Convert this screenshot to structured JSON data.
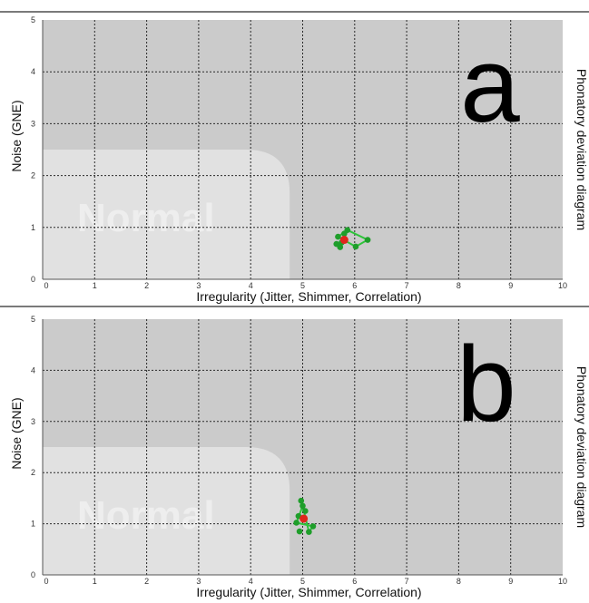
{
  "chart_data": [
    {
      "type": "scatter",
      "panel_letter": "a",
      "xlabel": "Irregularity (Jitter, Shimmer, Correlation)",
      "ylabel": "Noise (GNE)",
      "right_label": "Phonatory deviation diagram",
      "region_label": "Normal",
      "xlim": [
        0,
        10
      ],
      "ylim": [
        0,
        5
      ],
      "x_ticks": [
        "0",
        "1",
        "2",
        "3",
        "4",
        "5",
        "6",
        "7",
        "8",
        "9",
        "10"
      ],
      "y_ticks": [
        "0",
        "1",
        "2",
        "3",
        "4",
        "5"
      ],
      "grid": true,
      "normal_region": {
        "x_max": 4.75,
        "y_max": 2.5
      },
      "colors": {
        "outer": "#cbcbcb",
        "normal": "#e1e1e1",
        "points": "#1e9e2a",
        "lines": "#2ec43a",
        "mean": "#e0261c"
      },
      "series": [
        {
          "points": [
            [
              5.65,
              0.68
            ],
            [
              5.68,
              0.82
            ],
            [
              5.72,
              0.62
            ],
            [
              5.75,
              0.71
            ],
            [
              5.86,
              0.95
            ],
            [
              6.02,
              0.63
            ],
            [
              6.25,
              0.76
            ],
            [
              5.8,
              0.88
            ]
          ],
          "polygon": [
            [
              5.68,
              0.82
            ],
            [
              5.86,
              0.95
            ],
            [
              6.25,
              0.76
            ],
            [
              6.02,
              0.63
            ],
            [
              5.68,
              0.82
            ]
          ],
          "mean": [
            5.8,
            0.76
          ]
        }
      ]
    },
    {
      "type": "scatter",
      "panel_letter": "b",
      "xlabel": "Irregularity (Jitter, Shimmer, Correlation)",
      "ylabel": "Noise (GNE)",
      "right_label": "Phonatory deviation diagram",
      "region_label": "Normal",
      "xlim": [
        0,
        10
      ],
      "ylim": [
        0,
        5
      ],
      "x_ticks": [
        "0",
        "1",
        "2",
        "3",
        "4",
        "5",
        "6",
        "7",
        "8",
        "9",
        "10"
      ],
      "y_ticks": [
        "0",
        "1",
        "2",
        "3",
        "4",
        "5"
      ],
      "grid": true,
      "normal_region": {
        "x_max": 4.75,
        "y_max": 2.5
      },
      "colors": {
        "outer": "#cbcbcb",
        "normal": "#e1e1e1",
        "points": "#1e9e2a",
        "lines": "#2ec43a",
        "mean": "#e0261c"
      },
      "series": [
        {
          "points": [
            [
              4.97,
              1.45
            ],
            [
              5.0,
              1.35
            ],
            [
              4.92,
              1.15
            ],
            [
              4.88,
              1.02
            ],
            [
              4.94,
              0.85
            ],
            [
              5.12,
              0.84
            ],
            [
              5.2,
              0.95
            ],
            [
              5.05,
              1.25
            ]
          ],
          "polygon": [
            [
              5.0,
              1.35
            ],
            [
              4.88,
              1.02
            ],
            [
              5.2,
              0.95
            ],
            [
              5.12,
              0.84
            ],
            [
              5.0,
              1.35
            ]
          ],
          "mean": [
            5.02,
            1.1
          ]
        }
      ]
    }
  ]
}
